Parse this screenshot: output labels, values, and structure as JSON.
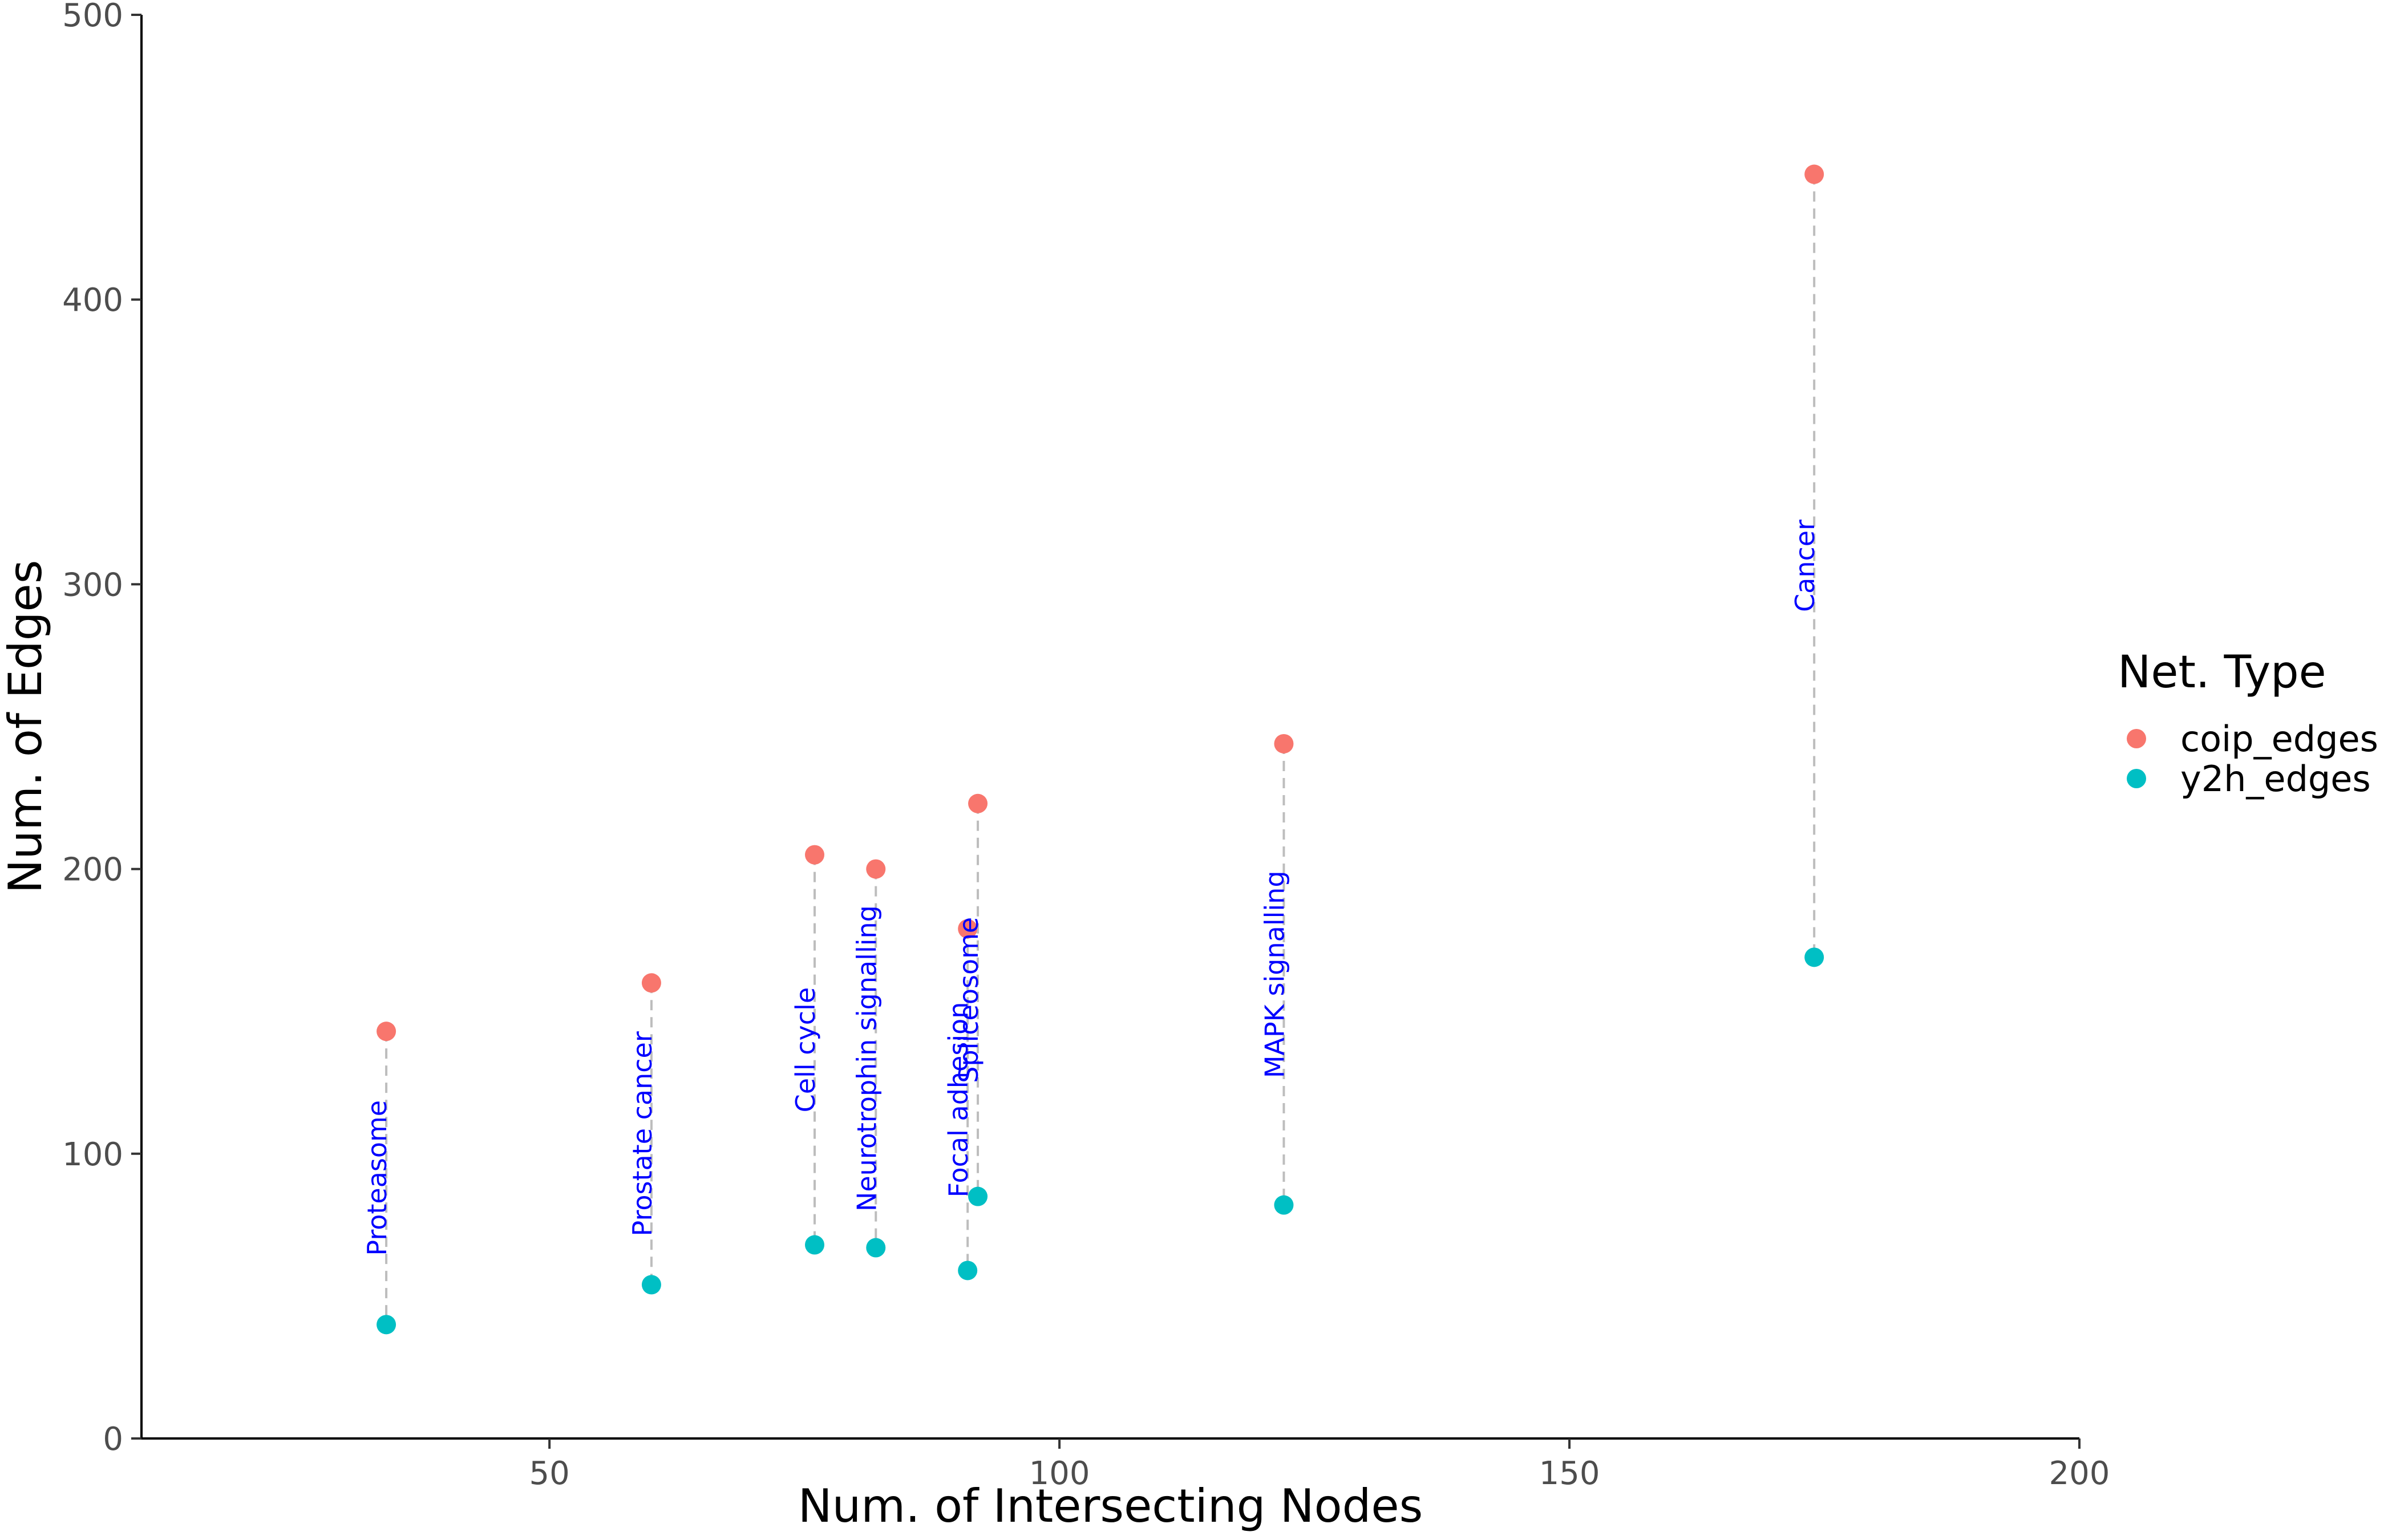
{
  "chart_data": {
    "type": "scatter",
    "title": "",
    "xlabel": "Num. of Intersecting Nodes",
    "ylabel": "Num. of Edges",
    "xlim": [
      10,
      200
    ],
    "ylim": [
      0,
      500
    ],
    "x_ticks": [
      50,
      100,
      150,
      200
    ],
    "y_ticks": [
      0,
      100,
      200,
      300,
      400,
      500
    ],
    "grid": false,
    "legend": {
      "title": "Net. Type",
      "placement": "right",
      "entries": [
        {
          "name": "coip_edges",
          "color": "#F8766D"
        },
        {
          "name": "y2h_edges",
          "color": "#00BFC4"
        }
      ]
    },
    "connector_color": "#bdbdbd",
    "label_color": "#0000ff",
    "points": [
      {
        "label": "Proteasome",
        "x": 34,
        "coip_edges": 143,
        "y2h_edges": 40
      },
      {
        "label": "Prostate cancer",
        "x": 60,
        "coip_edges": 160,
        "y2h_edges": 54
      },
      {
        "label": "Cell cycle",
        "x": 76,
        "coip_edges": 205,
        "y2h_edges": 68
      },
      {
        "label": "Neurotrophin signalling",
        "x": 82,
        "coip_edges": 200,
        "y2h_edges": 67
      },
      {
        "label": "Focal adhesion",
        "x": 91,
        "coip_edges": 179,
        "y2h_edges": 59
      },
      {
        "label": "Spliceosome",
        "x": 92,
        "coip_edges": 223,
        "y2h_edges": 85
      },
      {
        "label": "MAPK signalling",
        "x": 122,
        "coip_edges": 244,
        "y2h_edges": 82
      },
      {
        "label": "Cancer",
        "x": 174,
        "coip_edges": 444,
        "y2h_edges": 169
      }
    ]
  }
}
